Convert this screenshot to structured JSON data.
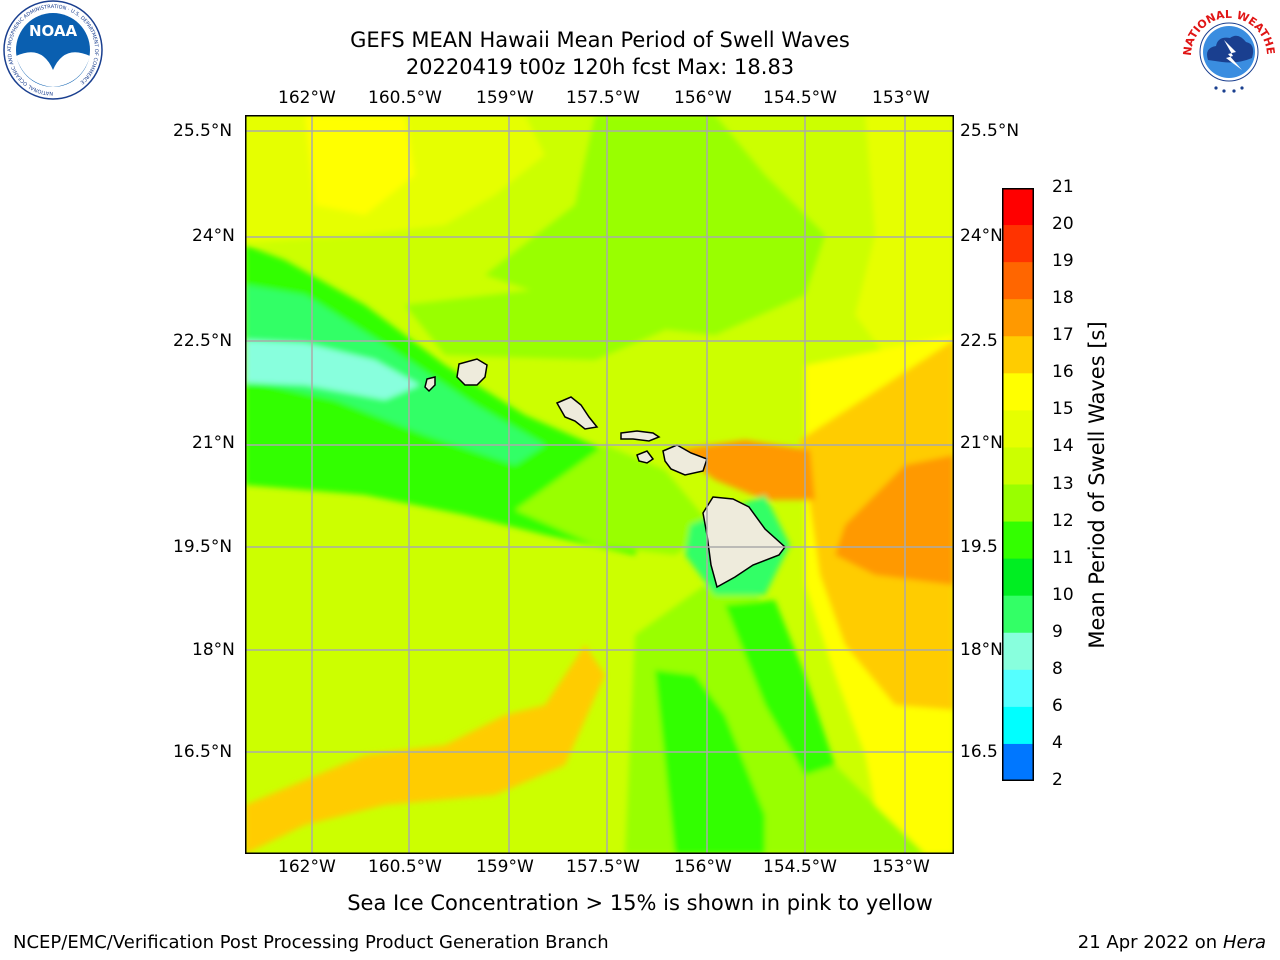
{
  "header": {
    "title_line1": "GEFS MEAN Hawaii Mean Period of Swell Waves",
    "title_line2": "20220419 t00z 120h fcst   Max: 18.83"
  },
  "map": {
    "lon_ticks": [
      "162°W",
      "160.5°W",
      "159°W",
      "157.5°W",
      "156°W",
      "154.5°W",
      "153°W"
    ],
    "lat_ticks": [
      "25.5°N",
      "24°N",
      "22.5°N",
      "21°N",
      "19.5°N",
      "18°N",
      "16.5°N"
    ],
    "lat_ticks_right": [
      "25.5°N",
      "24°N",
      "22.5",
      "21°N",
      "19.5",
      "18°N",
      "16.5"
    ],
    "grid": true,
    "land_color": "#eeebdc"
  },
  "colorbar": {
    "label": "Mean Period of Swell Waves [s]",
    "ticks": [
      "21",
      "20",
      "19",
      "18",
      "17",
      "16",
      "15",
      "14",
      "13",
      "12",
      "11",
      "10",
      "9",
      "8",
      "6",
      "4",
      "2"
    ],
    "colors": [
      "#ff0000",
      "#ff3300",
      "#ff6600",
      "#ff9900",
      "#ffcc00",
      "#ffff00",
      "#e6ff00",
      "#ccff00",
      "#99ff00",
      "#33ff00",
      "#00ee22",
      "#33ff66",
      "#88ffdd",
      "#55ffff",
      "#00ffff",
      "#0077ff",
      "#0000ff"
    ]
  },
  "caption": "Sea Ice Concentration > 15% is shown in pink to yellow",
  "footer": {
    "left": "NCEP/EMC/Verification Post Processing Product Generation Branch",
    "right_text": "21 Apr 2022 on",
    "right_italic": "Hera"
  },
  "logos": {
    "noaa_text": "NOAA",
    "noaa_ring": "NATIONAL OCEANIC AND ATMOSPHERIC ADMINISTRATION · U.S. DEPARTMENT OF COMMERCE",
    "nws_ring": "NATIONAL WEATHER SERVICE"
  }
}
